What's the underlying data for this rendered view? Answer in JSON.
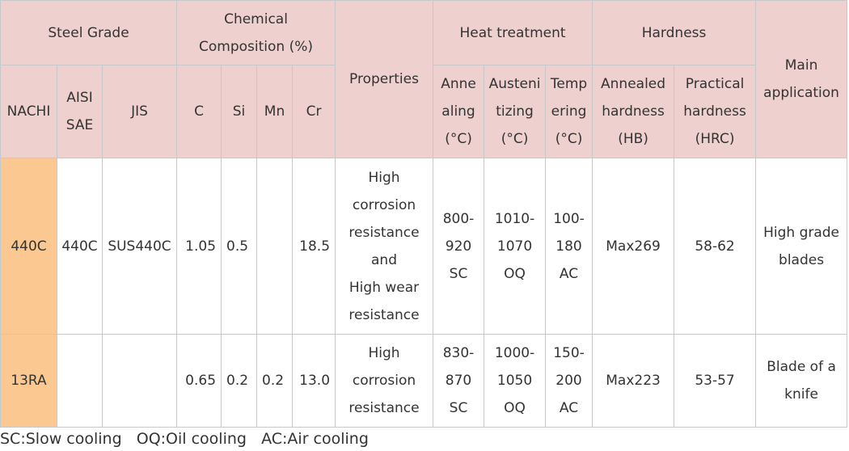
{
  "header": {
    "steel_grade": "Steel Grade",
    "chemical_composition": "Chemical\nComposition (%)",
    "properties": "Properties",
    "heat_treatment": "Heat treatment",
    "hardness": "Hardness",
    "main_application": "Main\napplication",
    "nachi": "NACHI",
    "aisi_sae": "AISI\nSAE",
    "jis": "JIS",
    "c": "C",
    "si": "Si",
    "mn": "Mn",
    "cr": "Cr",
    "annealing": "Anne\naling\n(°C)",
    "austenitizing": "Austeni\ntizing\n(°C)",
    "tempering": "Temp\nering\n(°C)",
    "annealed_hardness": "Annealed\nhardness\n(HB)",
    "practical_hardness": "Practical\nhardness\n(HRC)"
  },
  "rows": [
    {
      "nachi": "440C",
      "aisi_sae": "440C",
      "jis": "SUS440C",
      "c": "1.05",
      "si": "0.5",
      "mn": "",
      "cr": "18.5",
      "properties": "High\ncorrosion\nresistance\nand\nHigh wear\nresistance",
      "annealing": "800-\n920\nSC",
      "austenitizing": "1010-\n1070\nOQ",
      "tempering": "100-\n180\nAC",
      "annealed_hardness": "Max269",
      "practical_hardness": "58-62",
      "main_application": "High grade\nblades"
    },
    {
      "nachi": "13RA",
      "aisi_sae": "",
      "jis": "",
      "c": "0.65",
      "si": "0.2",
      "mn": "0.2",
      "cr": "13.0",
      "properties": "High\ncorrosion\nresistance",
      "annealing": "830-\n870\nSC",
      "austenitizing": "1000-\n1050\nOQ",
      "tempering": "150-\n200\nAC",
      "annealed_hardness": "Max223",
      "practical_hardness": "53-57",
      "main_application": "Blade of a\nknife"
    }
  ],
  "legend": "SC:Slow cooling   OQ:Oil cooling   AC:Air cooling",
  "colors": {
    "header_bg": "#eed0cf",
    "grade_cell_bg": "#fbc891",
    "border": "#c8c8c8",
    "text": "#333333"
  }
}
